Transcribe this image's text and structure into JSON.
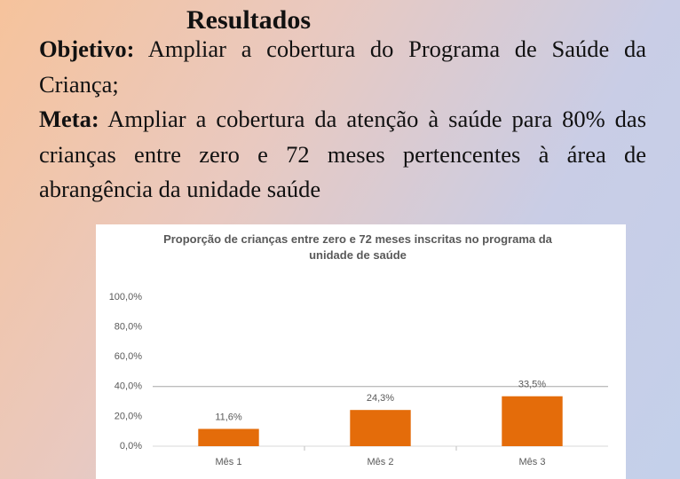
{
  "slide": {
    "title": "Resultados",
    "paragraphs": [
      {
        "label": "Objetivo:",
        "text": "Ampliar a cobertura do Programa de Saúde da Criança;"
      },
      {
        "label": "Meta:",
        "text": "Ampliar a cobertura da atenção à saúde para 80% das crianças entre zero e 72 meses pertencentes à área de abrangência da unidade saúde"
      }
    ]
  },
  "chart_data": {
    "type": "bar",
    "title": "Proporção de crianças entre zero e 72 meses inscritas no programa da unidade de saúde",
    "categories": [
      "Mês 1",
      "Mês 2",
      "Mês 3"
    ],
    "values": [
      11.6,
      24.3,
      33.5
    ],
    "value_labels": [
      "11,6%",
      "24,3%",
      "33,5%"
    ],
    "color": "#e46c0a",
    "ylim": [
      0,
      100
    ],
    "yticks": [
      {
        "value": 0,
        "label": "0,0%"
      },
      {
        "value": 20,
        "label": "20,0%"
      },
      {
        "value": 40,
        "label": "40,0%"
      },
      {
        "value": 60,
        "label": "60,0%"
      },
      {
        "value": 80,
        "label": "80,0%"
      },
      {
        "value": 100,
        "label": "100,0%"
      }
    ],
    "reference_line": 40
  }
}
